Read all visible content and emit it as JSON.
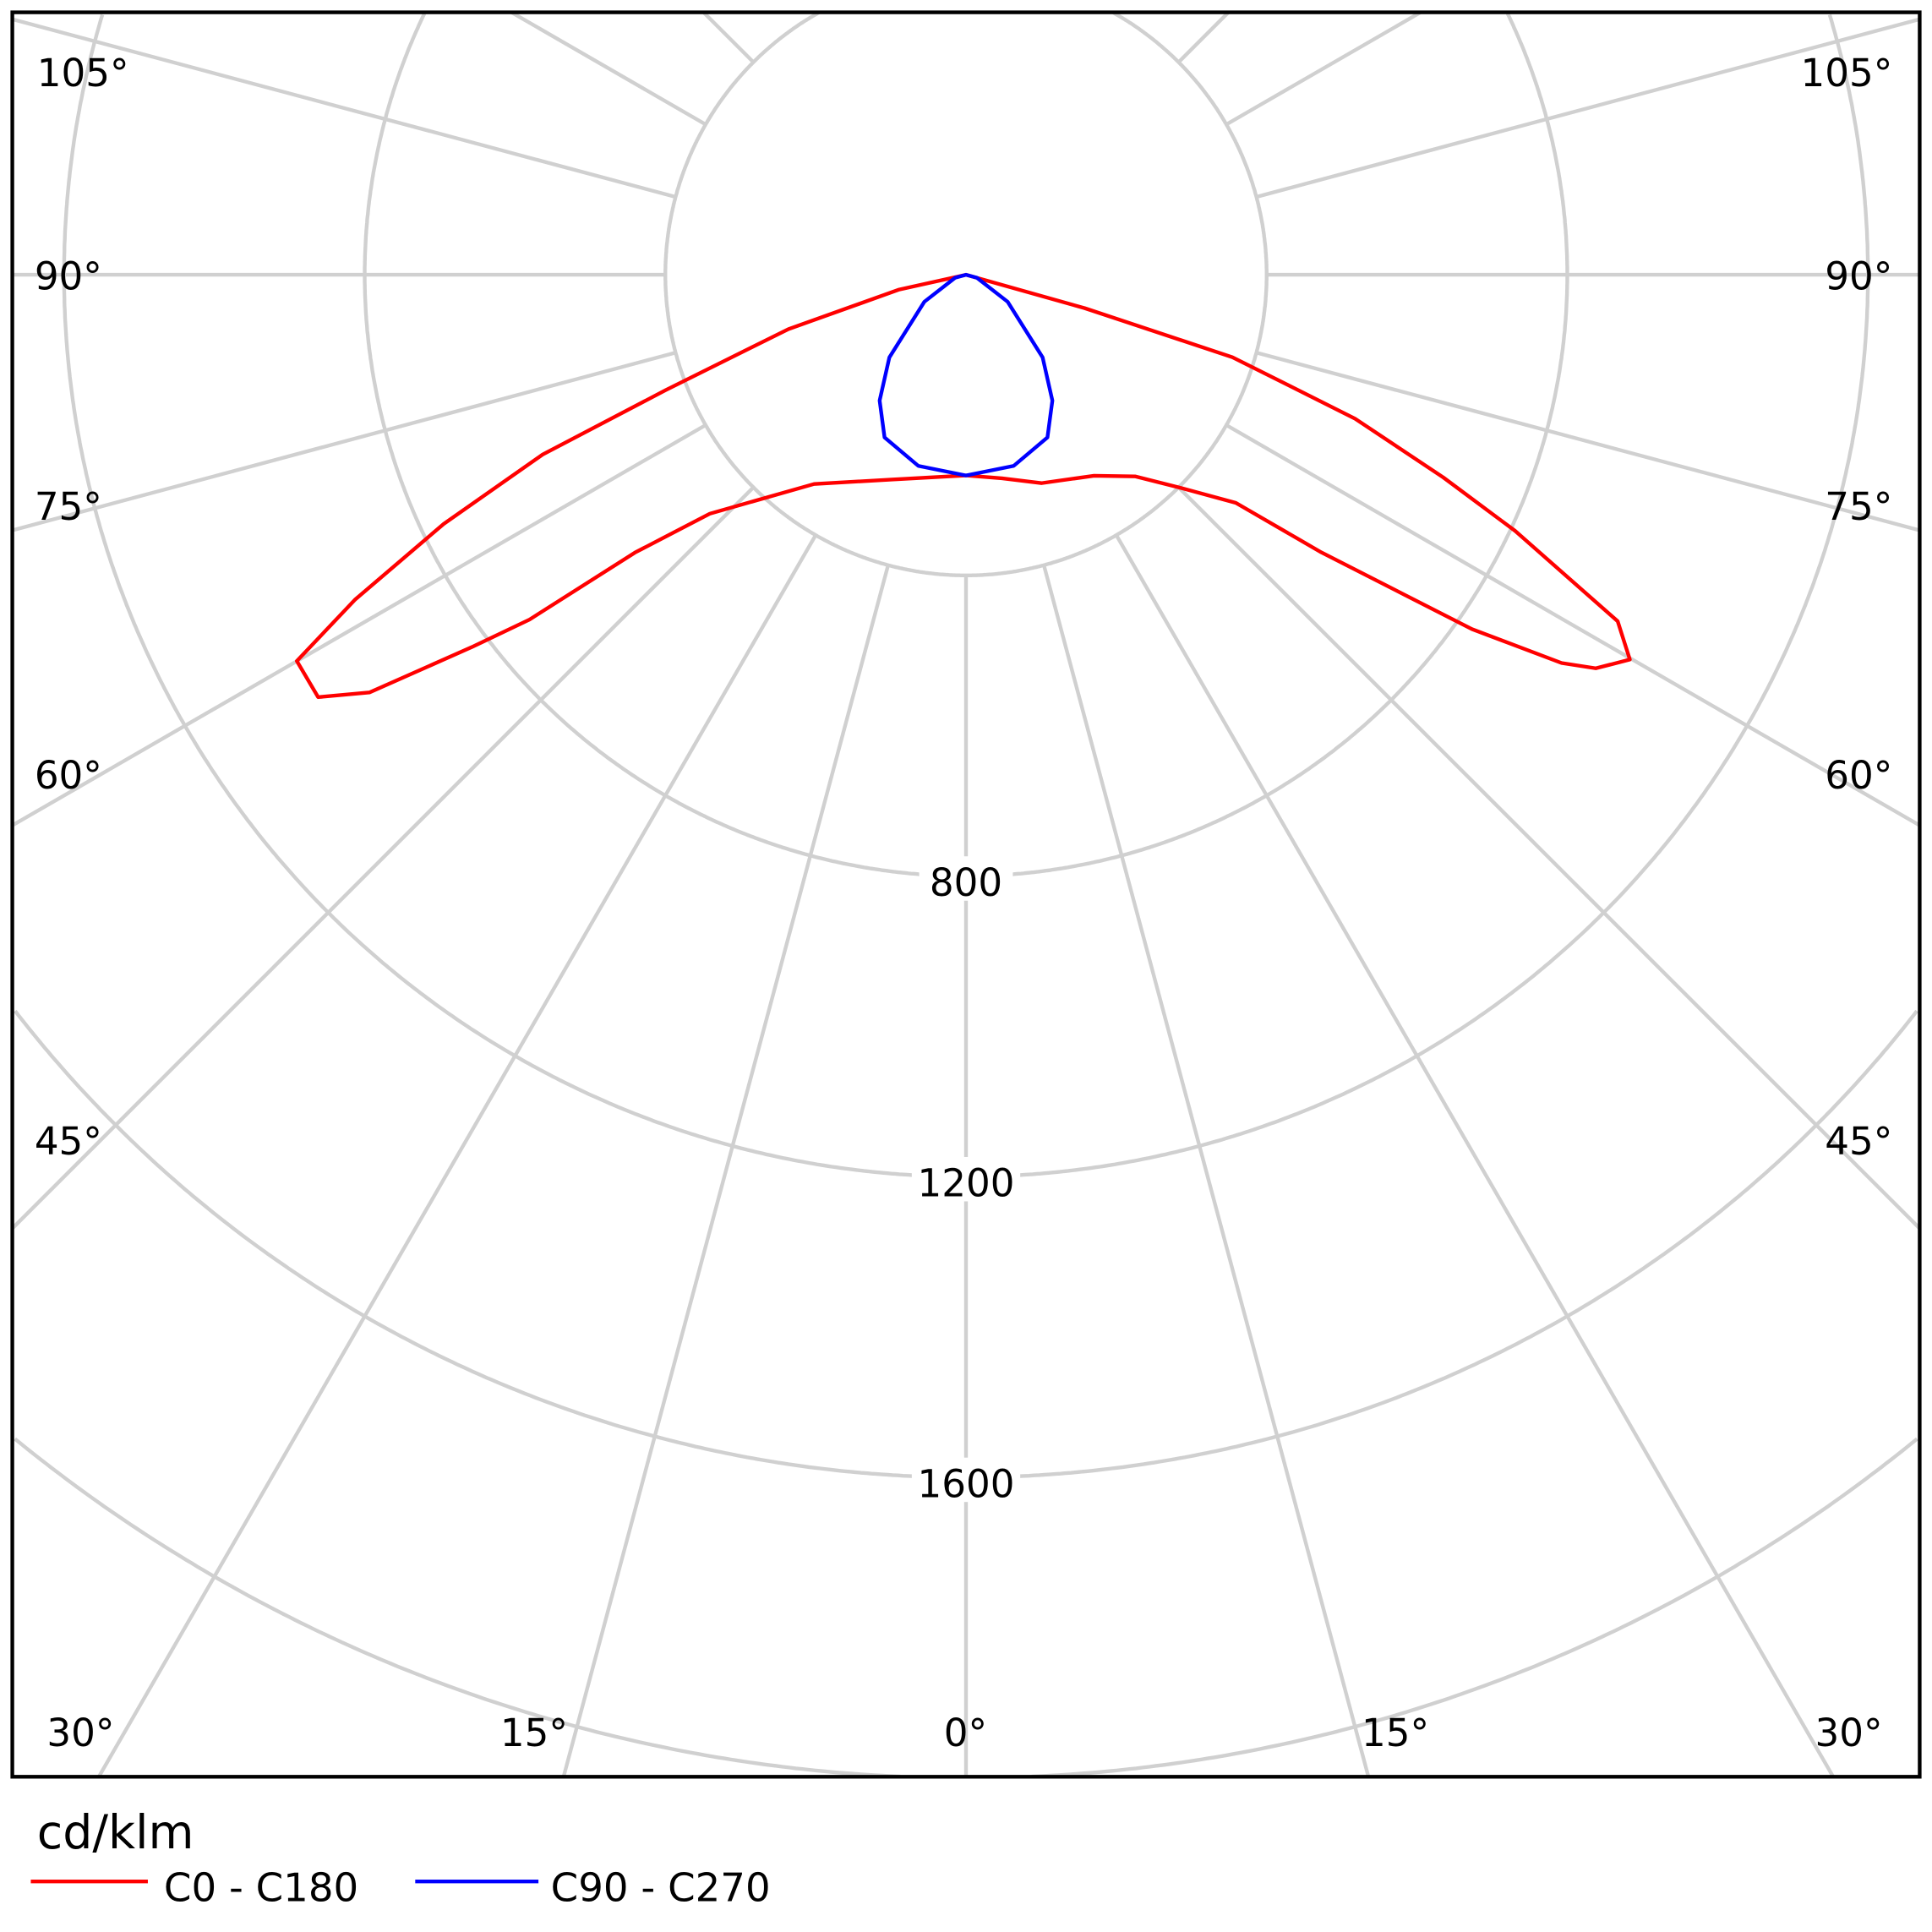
{
  "chart_data": {
    "type": "polar",
    "unit_label": "cd/klm",
    "radial_ticks": [
      400,
      800,
      1200,
      1600,
      2000,
      2400
    ],
    "radial_tick_labels": [
      "800",
      "1200",
      "1600"
    ],
    "angle_labels_left": [
      "105°",
      "90°",
      "75°",
      "60°",
      "45°",
      "30°"
    ],
    "angle_labels_bottom": [
      "30°",
      "15°",
      "0°",
      "15°",
      "30°"
    ],
    "angle_labels_right": [
      "105°",
      "90°",
      "75°",
      "60°",
      "45°",
      "30°"
    ],
    "grid": true,
    "legend_position": "bottom-left",
    "series": [
      {
        "name": "C0 - C180",
        "color": "#ff0000",
        "right_half_C0": [
          [
            0,
            267
          ],
          [
            10,
            275
          ],
          [
            20,
            295
          ],
          [
            32.5,
            317
          ],
          [
            40,
            350
          ],
          [
            45,
            400
          ],
          [
            49.8,
            470
          ],
          [
            52,
            600
          ],
          [
            53.9,
            723
          ],
          [
            55,
            822
          ],
          [
            56.9,
            946
          ],
          [
            58,
            988
          ],
          [
            59.9,
            1021
          ],
          [
            62,
            982
          ],
          [
            65,
            806
          ],
          [
            67,
            690
          ],
          [
            69.7,
            552
          ],
          [
            72.8,
            371
          ],
          [
            74.3,
            164
          ],
          [
            75.5,
            0
          ],
          [
            90,
            0
          ]
        ],
        "left_half_C180": [
          [
            0,
            267
          ],
          [
            20,
            290
          ],
          [
            36,
            344
          ],
          [
            47,
            466
          ],
          [
            50,
            575
          ],
          [
            51.7,
            740
          ],
          [
            53,
            823
          ],
          [
            55,
            969
          ],
          [
            56.9,
            1029
          ],
          [
            60,
            1028
          ],
          [
            62,
            921
          ],
          [
            64.5,
            770
          ],
          [
            67,
            612
          ],
          [
            69,
            428
          ],
          [
            73,
            247
          ],
          [
            77.5,
            91
          ],
          [
            80,
            0
          ],
          [
            90,
            0
          ]
        ]
      },
      {
        "name": "C90 - C270",
        "color": "#0000ff",
        "right_half_C90": [
          [
            0,
            267
          ],
          [
            14,
            262
          ],
          [
            26.6,
            242
          ],
          [
            34.5,
            203
          ],
          [
            42.8,
            150
          ],
          [
            57,
            66
          ],
          [
            75,
            15
          ],
          [
            90,
            0
          ]
        ],
        "left_half_C270": [
          [
            0,
            267
          ],
          [
            14,
            262
          ],
          [
            26.6,
            242
          ],
          [
            34.5,
            203
          ],
          [
            42.8,
            150
          ],
          [
            57,
            66
          ],
          [
            75,
            15
          ],
          [
            90,
            0
          ]
        ]
      }
    ]
  }
}
